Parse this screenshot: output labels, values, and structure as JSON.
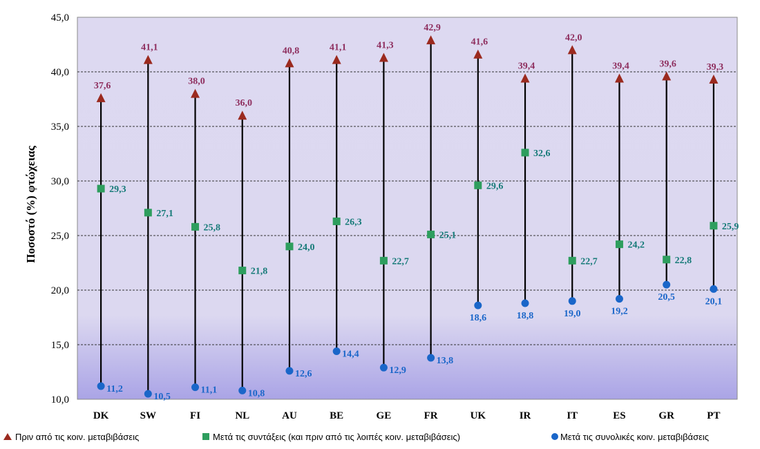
{
  "chart_data": {
    "type": "scatter",
    "ylabel": "Ποσοστό (%) φτώχειας",
    "ylim": [
      10,
      45
    ],
    "yticks": [
      "10,0",
      "15,0",
      "20,0",
      "25,0",
      "30,0",
      "35,0",
      "40,0",
      "45,0"
    ],
    "categories": [
      "DK",
      "SW",
      "FI",
      "NL",
      "AU",
      "BE",
      "GE",
      "FR",
      "UK",
      "IR",
      "IT",
      "ES",
      "GR",
      "PT"
    ],
    "grid": true,
    "legend_position": "bottom",
    "series": [
      {
        "name": "Πριν από τις κοιν. μεταβιβάσεις",
        "marker": "triangle",
        "color": "#9b2a1f",
        "label_color": "#8e2e5e",
        "values": [
          37.6,
          41.1,
          38.0,
          36.0,
          40.8,
          41.1,
          41.3,
          42.9,
          41.6,
          39.4,
          42.0,
          39.4,
          39.6,
          39.3
        ],
        "labels": [
          "37,6",
          "41,1",
          "38,0",
          "36,0",
          "40,8",
          "41,1",
          "41,3",
          "42,9",
          "41,6",
          "39,4",
          "42,0",
          "39,4",
          "39,6",
          "39,3"
        ]
      },
      {
        "name": "Μετά τις συντάξεις (και πριν από τις λοιπές κοιν. μεταβιβάσεις)",
        "marker": "square",
        "color": "#2e9e5e",
        "label_color": "#167a78",
        "values": [
          29.3,
          27.1,
          25.8,
          21.8,
          24.0,
          26.3,
          22.7,
          25.1,
          29.6,
          32.6,
          22.7,
          24.2,
          22.8,
          25.9
        ],
        "labels": [
          "29,3",
          "27,1",
          "25,8",
          "21,8",
          "24,0",
          "26,3",
          "22,7",
          "25,1",
          "29,6",
          "32,6",
          "22,7",
          "24,2",
          "22,8",
          "25,9"
        ]
      },
      {
        "name": "Μετά τις συνολικές κοιν. μεταβιβάσεις",
        "marker": "circle",
        "color": "#1a66c9",
        "label_color": "#1a66c9",
        "values": [
          11.2,
          10.5,
          11.1,
          10.8,
          12.6,
          14.4,
          12.9,
          13.8,
          18.6,
          18.8,
          19.0,
          19.2,
          20.5,
          20.1
        ],
        "labels": [
          "11,2",
          "10,5",
          "11,1",
          "10,8",
          "12,6",
          "14,4",
          "12,9",
          "13,8",
          "18,6",
          "18,8",
          "19,0",
          "19,2",
          "20,5",
          "20,1"
        ]
      }
    ]
  }
}
